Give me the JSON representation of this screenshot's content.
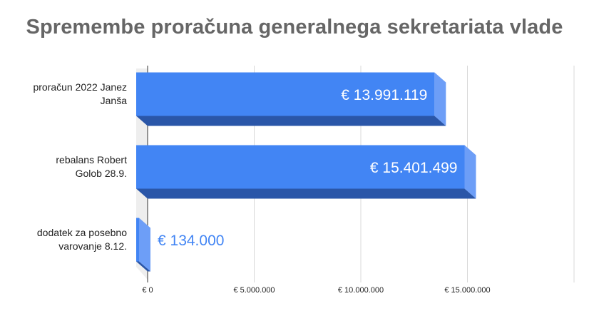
{
  "title": "Spremembe proračuna generalnega sekretariata vlade",
  "colors": {
    "bar_front": "#4285f4",
    "bar_side": "#6d9ef7",
    "bar_bottom": "#2a56a8",
    "wall": "#eeeeee",
    "grid": "#d9d9d9",
    "title": "#666666",
    "label_inside": "#ffffff",
    "label_outside": "#4285f4"
  },
  "chart_data": {
    "type": "bar",
    "orientation": "horizontal",
    "style": "3d",
    "title": "Spremembe proračuna generalnega sekretariata vlade",
    "categories": [
      [
        "proračun 2022 Janez",
        "Janša"
      ],
      [
        "rebalans Robert",
        "Golob 28.9."
      ],
      [
        "dodatek za posebno",
        "varovanje 8.12."
      ]
    ],
    "values": [
      13991119,
      15401499,
      134000
    ],
    "data_labels": [
      "€ 13.991.119",
      "€ 15.401.499",
      "€ 134.000"
    ],
    "x_ticks": [
      0,
      5000000,
      10000000,
      15000000,
      20000000
    ],
    "x_tick_labels": [
      "€ 0",
      "€ 5.000.000",
      "€ 10.000.000",
      "€ 15.000.000",
      ""
    ],
    "xlim": [
      0,
      20000000
    ],
    "grid": true,
    "legend": "none",
    "xlabel": "",
    "ylabel": ""
  }
}
